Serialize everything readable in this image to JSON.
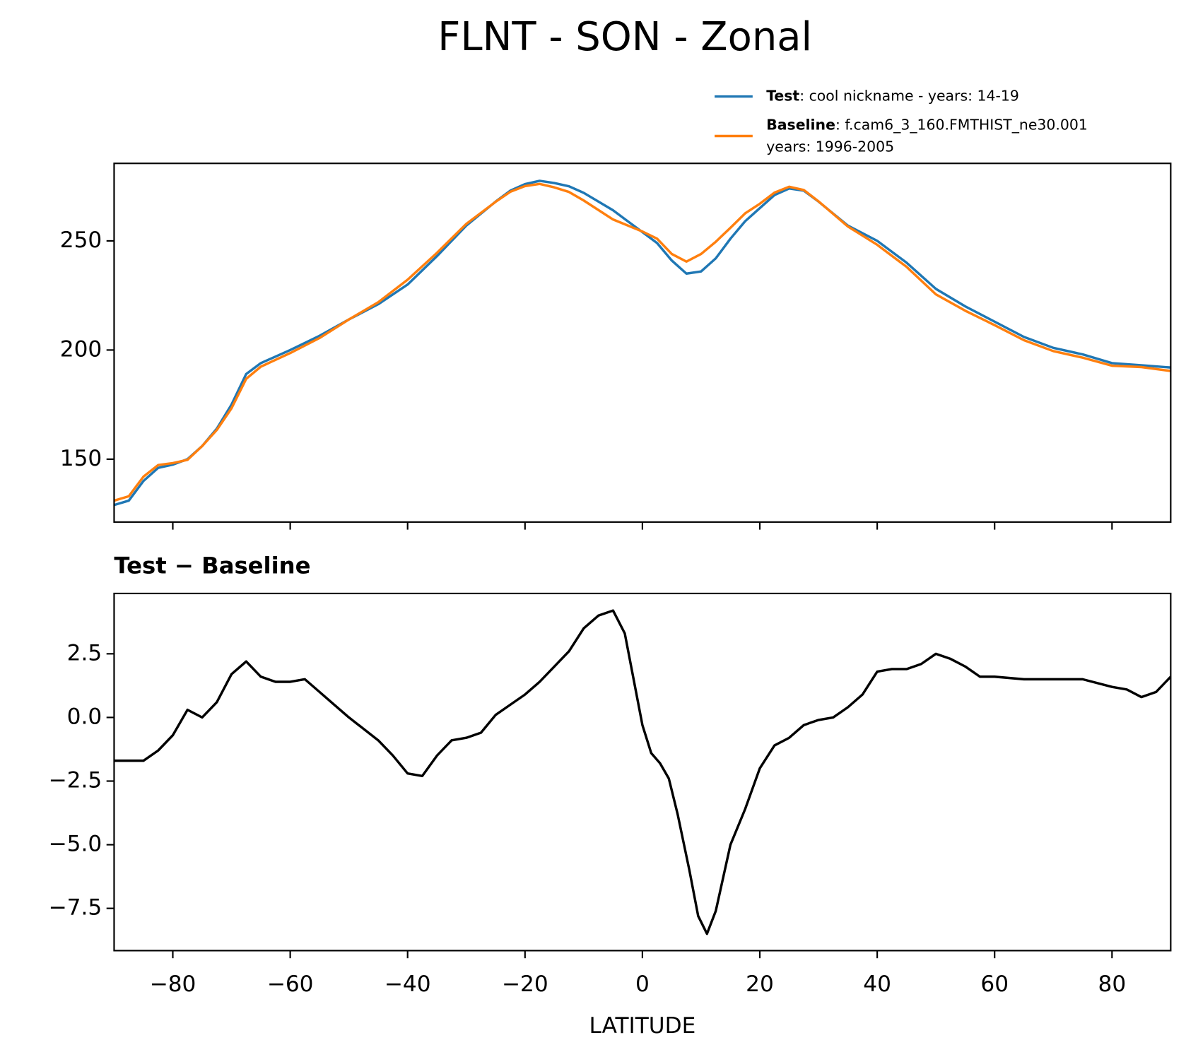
{
  "chart_data": [
    {
      "type": "line",
      "title": "FLNT - SON - Zonal",
      "x": [
        -90,
        -87.5,
        -85,
        -82.5,
        -80,
        -77.5,
        -75,
        -72.5,
        -70,
        -67.5,
        -65,
        -60,
        -55,
        -50,
        -45,
        -40,
        -35,
        -30,
        -25,
        -22.5,
        -20,
        -17.5,
        -15,
        -12.5,
        -10,
        -5,
        0,
        2.5,
        5,
        7.5,
        10,
        12.5,
        15,
        17.5,
        20,
        22.5,
        25,
        27.5,
        30,
        35,
        40,
        45,
        50,
        55,
        60,
        65,
        70,
        75,
        80,
        85,
        90
      ],
      "series": [
        {
          "name": "Test",
          "description": [
            ": cool nickname - years: 14-19"
          ],
          "color": "#1f77b4",
          "values": [
            129,
            131,
            140,
            146,
            147.5,
            150,
            156,
            164,
            175,
            189,
            194,
            200,
            206.5,
            214,
            221,
            230,
            243,
            257,
            268,
            273,
            276,
            277.5,
            276.5,
            275,
            272,
            264,
            254,
            249,
            241,
            235,
            236,
            242,
            251,
            259,
            265,
            271,
            274,
            273,
            268,
            257,
            250,
            240,
            228,
            220,
            213,
            206,
            201,
            198,
            194,
            193,
            192
          ]
        },
        {
          "name": "Baseline",
          "description": [
            ": f.cam6_3_160.FMTHIST_ne30.001",
            "years: 1996-2005"
          ],
          "color": "#ff7f0e",
          "values": [
            131,
            133,
            142,
            147.3,
            148.2,
            149.7,
            156,
            163.4,
            173.3,
            186.8,
            192.4,
            198.6,
            205.5,
            214,
            221.9,
            232.2,
            244.5,
            257.8,
            267.9,
            272.5,
            275.1,
            276.1,
            274.5,
            272.4,
            268.5,
            259.8,
            254.3,
            251,
            244,
            240.5,
            244,
            249.6,
            256,
            262.6,
            267,
            272.1,
            274.8,
            273.3,
            268.1,
            256.6,
            248.2,
            238.1,
            225.5,
            218,
            211.4,
            204.5,
            199.5,
            196.5,
            192.8,
            192.2,
            190.4
          ]
        }
      ],
      "xlim": [
        -90,
        90
      ],
      "xticks": [
        -80,
        -60,
        -40,
        -20,
        0,
        20,
        40,
        60,
        80
      ],
      "xticklabels": false,
      "ylim": [
        121.2,
        285.5
      ],
      "yticks": [
        150,
        200,
        250
      ],
      "legend": "upper right"
    },
    {
      "type": "line",
      "title": "Test − Baseline",
      "xlabel": "LATITUDE",
      "color": "#000000",
      "x": [
        -90,
        -87.5,
        -85,
        -82.5,
        -80,
        -77.5,
        -75,
        -72.5,
        -70,
        -67.5,
        -65,
        -62.5,
        -60,
        -57.5,
        -55,
        -52.5,
        -50,
        -45,
        -42.5,
        -40,
        -37.5,
        -35,
        -32.5,
        -30,
        -27.5,
        -25,
        -22.5,
        -20,
        -17.5,
        -15,
        -12.5,
        -10,
        -7.5,
        -5,
        -3,
        -1.5,
        0,
        1.5,
        3,
        4.5,
        6,
        8,
        9.5,
        11,
        12.5,
        15,
        17.5,
        20,
        22.5,
        25,
        27.5,
        30,
        32.5,
        35,
        37.5,
        40,
        42.5,
        45,
        47.5,
        50,
        52.5,
        55,
        57.5,
        60,
        65,
        70,
        75,
        80,
        82.5,
        85,
        87.5,
        90
      ],
      "values": [
        -1.7,
        -1.7,
        -1.7,
        -1.3,
        -0.7,
        0.3,
        0.0,
        0.6,
        1.7,
        2.2,
        1.6,
        1.4,
        1.4,
        1.5,
        1.0,
        0.5,
        0.0,
        -0.9,
        -1.5,
        -2.2,
        -2.3,
        -1.5,
        -0.9,
        -0.8,
        -0.6,
        0.1,
        0.5,
        0.9,
        1.4,
        2.0,
        2.6,
        3.5,
        4.0,
        4.2,
        3.3,
        1.5,
        -0.3,
        -1.4,
        -1.8,
        -2.4,
        -3.8,
        -6.0,
        -7.8,
        -8.5,
        -7.6,
        -5.0,
        -3.6,
        -2.0,
        -1.1,
        -0.8,
        -0.3,
        -0.1,
        0.0,
        0.4,
        0.9,
        1.8,
        1.9,
        1.9,
        2.1,
        2.5,
        2.3,
        2.0,
        1.6,
        1.6,
        1.5,
        1.5,
        1.5,
        1.2,
        1.1,
        0.8,
        1.0,
        1.6
      ],
      "xlim": [
        -90,
        90
      ],
      "xticks": [
        {
          "value": -80,
          "label": "−80"
        },
        {
          "value": -60,
          "label": "−60"
        },
        {
          "value": -40,
          "label": "−40"
        },
        {
          "value": -20,
          "label": "−20"
        },
        0,
        20,
        40,
        60,
        80
      ],
      "ylim": [
        -9.16,
        4.87
      ],
      "yticks": [
        {
          "value": -7.5,
          "label": "−7.5"
        },
        {
          "value": -5,
          "label": "−5.0"
        },
        {
          "value": -2.5,
          "label": "−2.5"
        },
        {
          "value": 0,
          "label": "0.0"
        },
        2.5
      ]
    }
  ]
}
